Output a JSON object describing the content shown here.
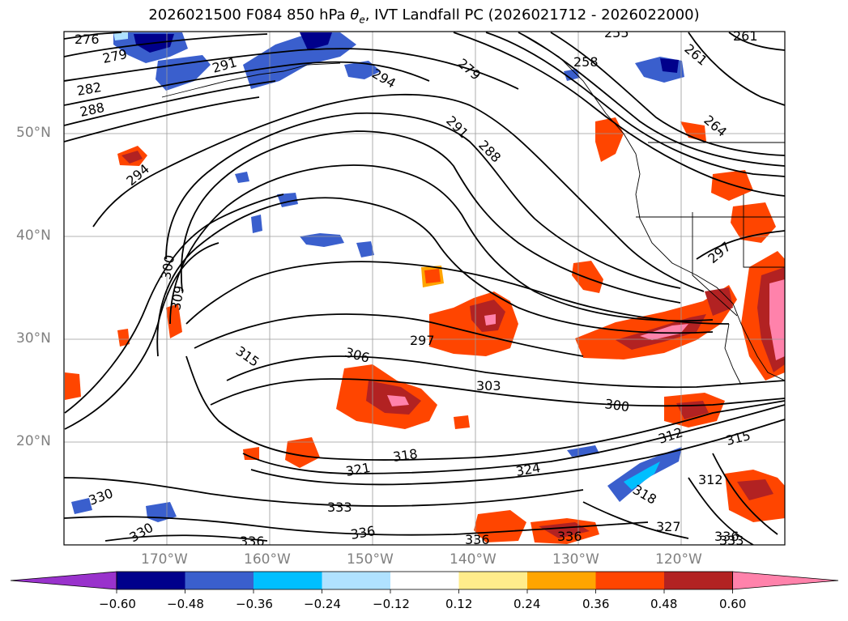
{
  "title": {
    "prefix": "2026021500 F084 850 hPa ",
    "symbol": "θ",
    "subscript": "e",
    "suffix": ", IVT Landfall PC (2026021712 - 2026022000)"
  },
  "latitude_labels": [
    "50°N",
    "40°N",
    "30°N",
    "20°N"
  ],
  "longitude_labels": [
    "170°W",
    "160°W",
    "150°W",
    "140°W",
    "130°W",
    "120°W"
  ],
  "contour_labels": [
    "276",
    "279",
    "282",
    "288",
    "291",
    "294",
    "294",
    "279",
    "291",
    "288",
    "255",
    "258",
    "261",
    "261",
    "264",
    "297",
    "300",
    "309",
    "315",
    "306",
    "297",
    "303",
    "300",
    "315",
    "318",
    "321",
    "318",
    "324",
    "312",
    "312",
    "330",
    "333",
    "336",
    "336",
    "336",
    "327",
    "330",
    "336",
    "336",
    "333"
  ],
  "colorbar": {
    "tick_labels": [
      "−0.60",
      "−0.48",
      "−0.36",
      "−0.24",
      "−0.12",
      "0.12",
      "0.24",
      "0.36",
      "0.48",
      "0.60"
    ],
    "colors": [
      "#9932cc",
      "#00008b",
      "#3a5fcd",
      "#00bfff",
      "#b0e2ff",
      "#ffffff",
      "#ffec8b",
      "#ffa500",
      "#ff4500",
      "#b22222",
      "#ff82ab"
    ]
  }
}
